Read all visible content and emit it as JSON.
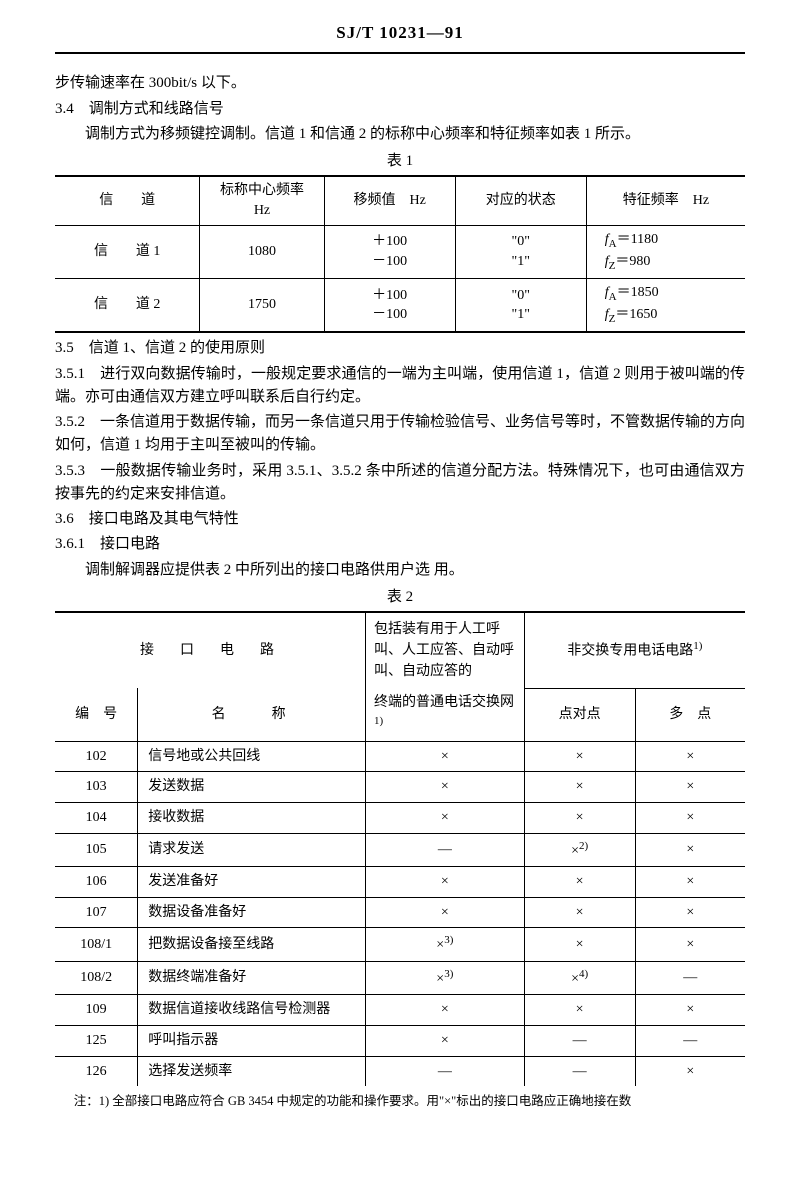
{
  "header": "SJ/T 10231—91",
  "p1": "步传输速率在 300bit/s 以下。",
  "s34": "3.4　调制方式和线路信号",
  "p34": "调制方式为移频键控调制。信道 1 和信通 2 的标称中心频率和特征频率如表 1 所示。",
  "t1cap": "表 1",
  "t1": {
    "h": [
      "信　　道",
      "标称中心频率\nHz",
      "移频值　Hz",
      "对应的状态",
      "特征频率　Hz"
    ],
    "r1": {
      "ch": "信　　道 1",
      "cf": "1080",
      "shift": [
        "＋100",
        "－100"
      ],
      "state": [
        "\"0\"",
        "\"1\""
      ],
      "feat": [
        "fA＝1180",
        "fZ＝980"
      ]
    },
    "r2": {
      "ch": "信　　道 2",
      "cf": "1750",
      "shift": [
        "＋100",
        "－100"
      ],
      "state": [
        "\"0\"",
        "\"1\""
      ],
      "feat": [
        "fA＝1850",
        "fZ＝1650"
      ]
    }
  },
  "s35": "3.5　信道 1、信道 2 的使用原则",
  "p351": "3.5.1　进行双向数据传输时，一般规定要求通信的一端为主叫端，使用信道 1，信道 2 则用于被叫端的传端。亦可由通信双方建立呼叫联系后自行约定。",
  "p352": "3.5.2　一条信道用于数据传输，而另一条信道只用于传输检验信号、业务信号等时，不管数据传输的方向如何，信道 1 均用于主叫至被叫的传输。",
  "p353": "3.5.3　一般数据传输业务时，采用 3.5.1、3.5.2 条中所述的信道分配方法。特殊情况下，也可由通信双方按事先的约定来安排信道。",
  "s36": "3.6　接口电路及其电气特性",
  "s361": "3.6.1　接口电路",
  "p361": "调制解调器应提供表 2 中所列出的接口电路供用户选 用。",
  "t2cap": "表 2",
  "t2": {
    "h_iface": "接　口　电　路",
    "h_col3_a": "包括装有用于人工呼叫、人工应答、自动呼叫、自动应答的",
    "h_col3_b": "终端的普通电话交换网",
    "h_col4": "非交换专用电话电路",
    "h_no": "编　号",
    "h_name": "名　　称",
    "h_ptp": "点对点",
    "h_mp": "多　点",
    "rows": [
      {
        "no": "102",
        "name": "信号地或公共回线",
        "c3": "×",
        "c4": "×",
        "c5": "×"
      },
      {
        "no": "103",
        "name": "发送数据",
        "c3": "×",
        "c4": "×",
        "c5": "×"
      },
      {
        "no": "104",
        "name": "接收数据",
        "c3": "×",
        "c4": "×",
        "c5": "×"
      },
      {
        "no": "105",
        "name": "请求发送",
        "c3": "—",
        "c4": "×",
        "c4sup": "2)",
        "c5": "×"
      },
      {
        "no": "106",
        "name": "发送准备好",
        "c3": "×",
        "c4": "×",
        "c5": "×"
      },
      {
        "no": "107",
        "name": "数据设备准备好",
        "c3": "×",
        "c4": "×",
        "c5": "×"
      },
      {
        "no": "108/1",
        "name": "把数据设备接至线路",
        "c3": "×",
        "c3sup": "3)",
        "c4": "×",
        "c5": "×"
      },
      {
        "no": "108/2",
        "name": "数据终端准备好",
        "c3": "×",
        "c3sup": "3)",
        "c4": "×",
        "c4sup": "4)",
        "c5": "—"
      },
      {
        "no": "109",
        "name": "数据信道接收线路信号检测器",
        "c3": "×",
        "c4": "×",
        "c5": "×"
      },
      {
        "no": "125",
        "name": "呼叫指示器",
        "c3": "×",
        "c4": "—",
        "c5": "—"
      },
      {
        "no": "126",
        "name": "选择发送频率",
        "c3": "—",
        "c4": "—",
        "c5": "×"
      }
    ],
    "sup1": "1)"
  },
  "foot": "注：1) 全部接口电路应符合 GB 3454 中规定的功能和操作要求。用\"×\"标出的接口电路应正确地接在数"
}
